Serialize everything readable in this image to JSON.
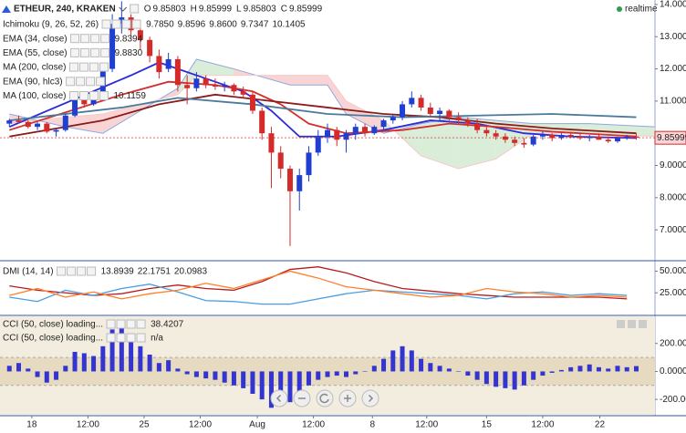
{
  "chart_data": [
    {
      "type": "candlestick",
      "symbol": "ETHEUR, 240, KRAKEN",
      "status": "realtime",
      "status_color": "#2e9d4a",
      "ohlc_legend": [
        {
          "label": "O",
          "value": "9.85803"
        },
        {
          "label": "H",
          "value": "9.85999"
        },
        {
          "label": "L",
          "value": "9.85803"
        },
        {
          "label": "C",
          "value": "9.85999"
        }
      ],
      "up_color": "#1f3fd1",
      "down_color": "#d42a2a",
      "xlim": [
        -1,
        69
      ],
      "ylim": [
        6.07,
        14.14
      ],
      "yticks": [
        {
          "value": 14,
          "label": "14.00000"
        },
        {
          "value": 13,
          "label": "13.00000"
        },
        {
          "value": 12,
          "label": "12.00000"
        },
        {
          "value": 11,
          "label": "11.00000"
        },
        {
          "value": 9,
          "label": "9.00000"
        },
        {
          "value": 8,
          "label": "8.00000"
        },
        {
          "value": 7,
          "label": "7.00000"
        }
      ],
      "price_label": {
        "value": 9.85999,
        "label": "9.85999"
      },
      "price_label_color": "#d42a2a",
      "ohlc": [
        [
          10.3,
          10.45,
          10.2,
          10.4
        ],
        [
          10.4,
          10.55,
          10.3,
          10.35
        ],
        [
          10.35,
          10.4,
          10.15,
          10.2
        ],
        [
          10.2,
          10.35,
          10.1,
          10.3
        ],
        [
          10.3,
          10.35,
          10.0,
          10.05
        ],
        [
          10.05,
          10.15,
          9.9,
          10.1
        ],
        [
          10.1,
          10.6,
          10.05,
          10.55
        ],
        [
          10.55,
          11.3,
          10.5,
          11.1
        ],
        [
          11.1,
          11.25,
          10.8,
          10.9
        ],
        [
          10.9,
          11.2,
          10.85,
          11.15
        ],
        [
          11.15,
          12.1,
          11.1,
          12.0
        ],
        [
          12.0,
          13.7,
          11.9,
          13.4
        ],
        [
          13.4,
          14.1,
          13.1,
          13.6
        ],
        [
          13.6,
          13.7,
          13.0,
          13.2
        ],
        [
          13.2,
          13.4,
          12.6,
          12.9
        ],
        [
          12.9,
          13.0,
          12.2,
          12.4
        ],
        [
          12.4,
          12.6,
          11.7,
          11.9
        ],
        [
          12.0,
          12.5,
          11.9,
          12.3
        ],
        [
          12.3,
          12.4,
          11.3,
          11.5
        ],
        [
          11.5,
          11.8,
          10.9,
          11.4
        ],
        [
          11.4,
          11.9,
          11.3,
          11.7
        ],
        [
          11.7,
          11.8,
          11.4,
          11.5
        ],
        [
          11.5,
          11.7,
          11.35,
          11.45
        ],
        [
          11.45,
          11.6,
          11.3,
          11.5
        ],
        [
          11.5,
          11.55,
          11.2,
          11.3
        ],
        [
          11.3,
          11.45,
          11.1,
          11.2
        ],
        [
          11.2,
          11.3,
          10.6,
          10.7
        ],
        [
          10.7,
          10.8,
          9.8,
          10.0
        ],
        [
          10.0,
          10.2,
          8.3,
          9.4
        ],
        [
          9.4,
          9.6,
          8.6,
          8.9
        ],
        [
          8.9,
          9.0,
          6.5,
          8.2
        ],
        [
          8.2,
          8.9,
          7.6,
          8.7
        ],
        [
          8.7,
          9.6,
          8.5,
          9.4
        ],
        [
          9.4,
          10.1,
          9.3,
          9.9
        ],
        [
          9.9,
          10.3,
          9.7,
          10.1
        ],
        [
          10.1,
          10.2,
          9.6,
          9.8
        ],
        [
          9.8,
          10.1,
          9.4,
          10.0
        ],
        [
          10.0,
          10.3,
          9.8,
          10.2
        ],
        [
          10.2,
          10.3,
          9.9,
          10.0
        ],
        [
          10.0,
          10.25,
          9.95,
          10.2
        ],
        [
          10.2,
          10.45,
          10.1,
          10.4
        ],
        [
          10.4,
          10.6,
          10.3,
          10.5
        ],
        [
          10.5,
          11.0,
          10.4,
          10.9
        ],
        [
          10.9,
          11.3,
          10.8,
          11.1
        ],
        [
          11.1,
          11.2,
          10.7,
          10.8
        ],
        [
          10.8,
          10.95,
          10.5,
          10.6
        ],
        [
          10.6,
          10.8,
          10.4,
          10.7
        ],
        [
          10.7,
          10.75,
          10.4,
          10.5
        ],
        [
          10.5,
          10.65,
          10.3,
          10.4
        ],
        [
          10.4,
          10.5,
          10.2,
          10.3
        ],
        [
          10.3,
          10.45,
          10.0,
          10.1
        ],
        [
          10.1,
          10.2,
          9.9,
          10.0
        ],
        [
          10.0,
          10.1,
          9.8,
          9.9
        ],
        [
          9.9,
          10.0,
          9.7,
          9.8
        ],
        [
          9.8,
          9.9,
          9.6,
          9.7
        ],
        [
          9.7,
          9.85,
          9.55,
          9.65
        ],
        [
          9.65,
          9.95,
          9.6,
          9.9
        ],
        [
          9.9,
          10.05,
          9.8,
          9.95
        ],
        [
          9.95,
          10.0,
          9.75,
          9.85
        ],
        [
          9.85,
          10.0,
          9.8,
          9.95
        ],
        [
          9.95,
          10.05,
          9.85,
          9.9
        ],
        [
          9.9,
          10.0,
          9.8,
          9.85
        ],
        [
          9.85,
          9.95,
          9.75,
          9.9
        ],
        [
          9.9,
          10.0,
          9.8,
          9.8
        ],
        [
          9.8,
          9.9,
          9.7,
          9.75
        ],
        [
          9.75,
          9.9,
          9.7,
          9.85
        ],
        [
          9.85,
          9.95,
          9.8,
          9.9
        ],
        [
          9.9,
          10.0,
          9.8,
          9.86
        ]
      ],
      "ichimoku": {
        "name": "Ichimoku (9, 26, 52, 26)",
        "legend_values": [
          "9.7850",
          "9.8596",
          "9.8600",
          "9.7347",
          "10.1405"
        ],
        "legend_colors": [
          "#3b8fd9",
          "#c62828",
          "#2e9d2e",
          "#6a8f2a",
          "#c62828"
        ],
        "up_color": "#cfe8cf",
        "down_color": "#f7c9c9",
        "edge_color": "#8fa8e0",
        "x": [
          0,
          6,
          10,
          18,
          20,
          24,
          30,
          34,
          36,
          40,
          44,
          48,
          52,
          56,
          62,
          69
        ],
        "span_a": [
          10.6,
          10.2,
          10.0,
          11.4,
          12.3,
          12.0,
          11.5,
          11.5,
          10.6,
          10.0,
          10.3,
          10.5,
          10.4,
          10.3,
          10.3,
          10.2
        ],
        "span_b": [
          10.3,
          10.5,
          10.6,
          11.2,
          11.8,
          11.8,
          11.8,
          11.8,
          11.0,
          10.4,
          9.3,
          8.9,
          9.2,
          10.0,
          10.0,
          9.9
        ]
      },
      "series": [
        {
          "name": "EMA (34, close)",
          "color": "#2b2bd9",
          "legend_values": [
            "9.8394"
          ],
          "x": [
            0,
            13,
            16,
            22,
            25,
            28,
            31,
            35,
            40,
            45,
            50,
            55,
            60,
            67
          ],
          "values": [
            10.2,
            11.8,
            12.2,
            11.6,
            11.3,
            10.7,
            9.9,
            9.9,
            10.1,
            10.4,
            10.3,
            10.0,
            9.9,
            9.85
          ]
        },
        {
          "name": "EMA (55, close)",
          "color": "#d32f2f",
          "legend_values": [
            "9.8830"
          ],
          "x": [
            0,
            12,
            17,
            22,
            26,
            29,
            32,
            36,
            42,
            47,
            52,
            58,
            67
          ],
          "values": [
            10.1,
            11.2,
            11.6,
            11.5,
            11.3,
            10.9,
            10.3,
            10.0,
            10.1,
            10.3,
            10.2,
            10.05,
            9.9
          ]
        },
        {
          "name": "MA (200, close)",
          "color": "#8b1a1a",
          "legend_values": [],
          "x": [
            0,
            10,
            16,
            22,
            28,
            34,
            40,
            46,
            52,
            58,
            67
          ],
          "values": [
            9.9,
            10.4,
            10.9,
            11.2,
            11.0,
            10.8,
            10.6,
            10.5,
            10.3,
            10.15,
            10.0
          ]
        },
        {
          "name": "EMA (90, hlc3)",
          "color": "#bbbbbb",
          "hidden": true,
          "legend_values": [],
          "x": [],
          "values": []
        },
        {
          "name": "MA (100, close)",
          "color": "#4a7a9c",
          "legend_values": [
            "10.1159"
          ],
          "x": [
            0,
            12,
            18,
            26,
            34,
            42,
            50,
            58,
            67
          ],
          "values": [
            10.4,
            10.8,
            11.1,
            10.9,
            10.6,
            10.5,
            10.55,
            10.6,
            10.5
          ]
        }
      ]
    },
    {
      "type": "line",
      "name": "DMI (14, 14)",
      "xlim": [
        -1,
        69
      ],
      "ylim": [
        0,
        61
      ],
      "yticks": [
        {
          "value": 50,
          "label": "50.00000"
        },
        {
          "value": 25,
          "label": "25.00000"
        }
      ],
      "x": [
        0,
        3,
        6,
        9,
        12,
        15,
        18,
        21,
        24,
        27,
        30,
        33,
        36,
        39,
        42,
        45,
        48,
        51,
        54,
        57,
        60,
        63,
        66
      ],
      "series": [
        {
          "color": "#b71c1c",
          "legend_value": "13.8939",
          "values": [
            33,
            28,
            25,
            22,
            24,
            30,
            34,
            30,
            28,
            38,
            52,
            55,
            48,
            38,
            30,
            27,
            24,
            22,
            20,
            20,
            20,
            20,
            18
          ]
        },
        {
          "color": "#4a9de0",
          "legend_value": "22.1751",
          "values": [
            20,
            15,
            28,
            22,
            30,
            35,
            26,
            16,
            15,
            12,
            12,
            18,
            24,
            28,
            26,
            24,
            22,
            18,
            24,
            26,
            22,
            24,
            22
          ]
        },
        {
          "color": "#ff7f2a",
          "legend_value": "20.0983",
          "values": [
            22,
            30,
            20,
            26,
            18,
            24,
            28,
            36,
            30,
            40,
            50,
            42,
            32,
            28,
            24,
            20,
            22,
            30,
            26,
            24,
            20,
            22,
            20
          ]
        }
      ]
    },
    {
      "type": "bar",
      "xlim": [
        -1,
        69
      ],
      "ylim": [
        -310,
        394
      ],
      "yticks": [
        {
          "value": 200,
          "label": "200.0000"
        },
        {
          "value": 0,
          "label": "0.0000"
        },
        {
          "value": -200,
          "label": "-200.0000"
        }
      ],
      "band": [
        -100,
        100
      ],
      "band_color": "#e6dac0",
      "background": "#f3ede0",
      "xticks": [
        {
          "value": 2.4,
          "label": "18"
        },
        {
          "value": 8.4,
          "label": "12:00"
        },
        {
          "value": 14.4,
          "label": "25"
        },
        {
          "value": 20.4,
          "label": "12:00"
        },
        {
          "value": 26.5,
          "label": "Aug"
        },
        {
          "value": 32.5,
          "label": "12:00"
        },
        {
          "value": 38.8,
          "label": "8"
        },
        {
          "value": 44.6,
          "label": "12:00"
        },
        {
          "value": 51,
          "label": "15"
        },
        {
          "value": 57,
          "label": "12:00"
        },
        {
          "value": 63.1,
          "label": "22"
        }
      ],
      "series": [
        {
          "name": "CCI (50, close) loading...",
          "color": "#3434d0",
          "legend_value": "38.4207",
          "values": [
            40,
            60,
            20,
            -40,
            -80,
            -60,
            40,
            140,
            130,
            110,
            180,
            300,
            320,
            250,
            180,
            120,
            60,
            80,
            20,
            -20,
            -40,
            -50,
            -60,
            -80,
            -100,
            -120,
            -160,
            -200,
            -260,
            -250,
            -220,
            -160,
            -100,
            -60,
            -40,
            -30,
            -40,
            -20,
            0,
            40,
            90,
            150,
            180,
            150,
            90,
            60,
            40,
            20,
            0,
            -30,
            -60,
            -90,
            -110,
            -120,
            -130,
            -100,
            -60,
            -30,
            -10,
            10,
            30,
            40,
            50,
            30,
            20,
            40,
            30,
            38
          ]
        },
        {
          "name": "CCI (50, close) loading...",
          "color": "#3434d0",
          "legend_value": "n/a",
          "values": []
        }
      ]
    }
  ]
}
